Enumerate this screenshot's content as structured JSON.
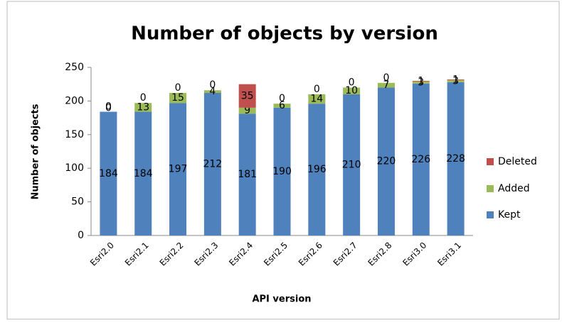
{
  "chart_data": {
    "type": "stacked_bar",
    "title": "Number of objects by version",
    "x_label": "API version",
    "y_label": "Number of objects",
    "categories": [
      "Esri2.0",
      "Esri2.1",
      "Esri2.2",
      "Esri2.3",
      "Esri2.4",
      "Esri2.5",
      "Esri2.6",
      "Esri2.7",
      "Esri2.8",
      "Esri3.0",
      "Esri3.1"
    ],
    "series": [
      {
        "name": "Kept",
        "color": "#4f81bd",
        "values": [
          184,
          184,
          197,
          212,
          181,
          190,
          196,
          210,
          220,
          226,
          228
        ]
      },
      {
        "name": "Added",
        "color": "#9bbb59",
        "values": [
          0,
          13,
          15,
          4,
          9,
          6,
          14,
          10,
          7,
          3,
          3
        ]
      },
      {
        "name": "Deleted",
        "color": "#c0504d",
        "values": [
          0,
          0,
          0,
          0,
          35,
          0,
          0,
          0,
          0,
          1,
          1
        ]
      }
    ],
    "ylim": [
      0,
      250
    ],
    "yticks": [
      0,
      50,
      100,
      150,
      200,
      250
    ],
    "legend": "right"
  }
}
